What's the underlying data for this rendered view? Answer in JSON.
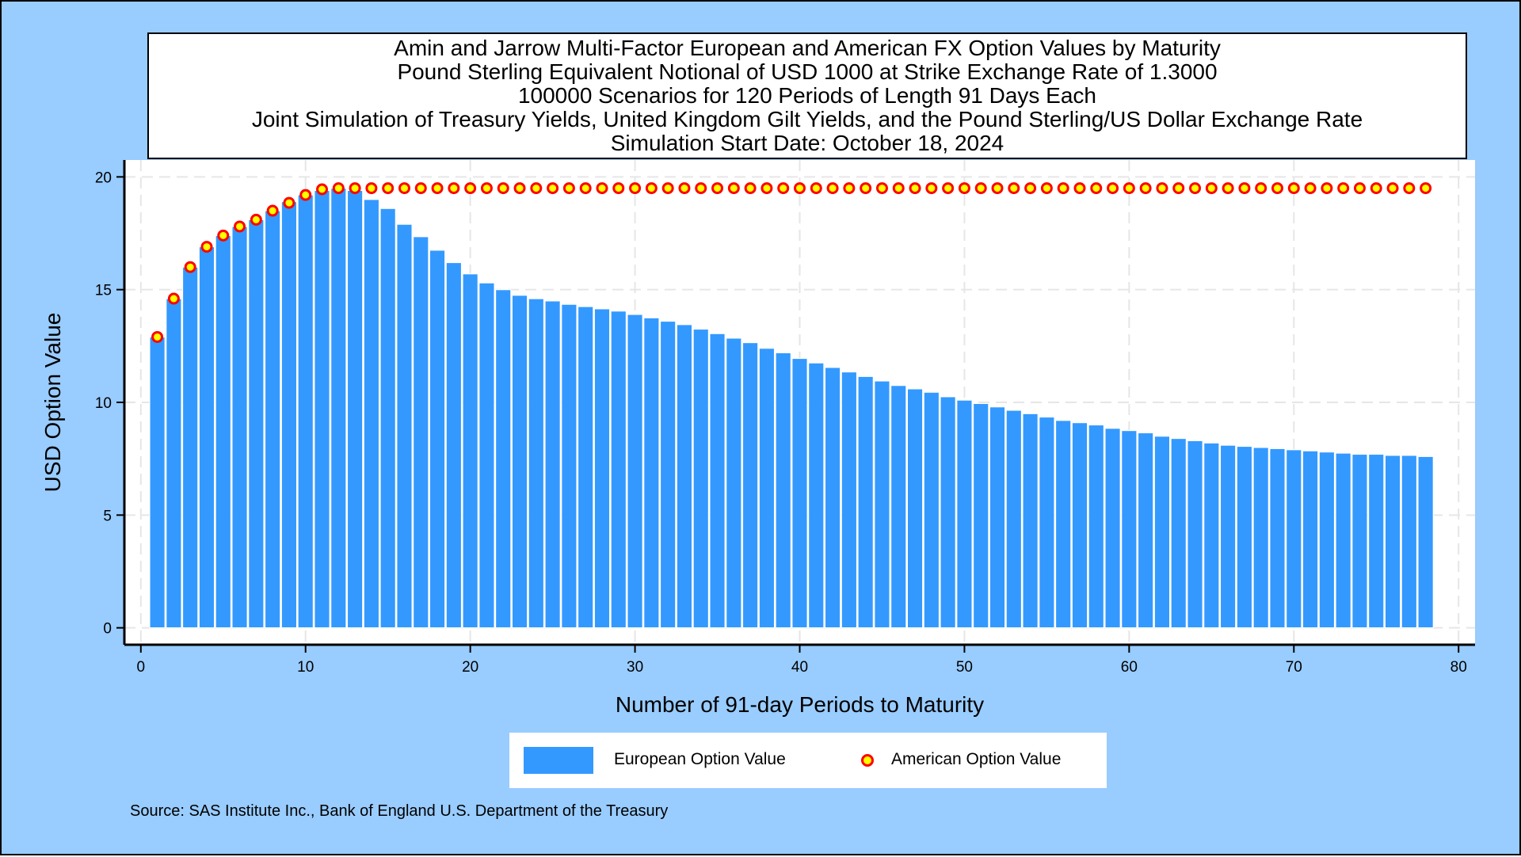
{
  "colors": {
    "background": "#99ccff",
    "bar_fill": "#3399ff",
    "bar_outline": "#ffffff",
    "marker_fill": "#ffff00",
    "marker_outline": "#ff0000",
    "grid": "#e6e6e6"
  },
  "title_lines": [
    "Amin and Jarrow Multi-Factor European and American FX Option Values by Maturity",
    "Pound Sterling Equivalent Notional of USD 1000 at Strike Exchange Rate of  1.3000",
    "100000 Scenarios for 120 Periods of Length 91 Days Each",
    "Joint Simulation of Treasury Yields, United Kingdom Gilt Yields, and the Pound Sterling/US Dollar Exchange Rate",
    "Simulation Start Date: October 18, 2024"
  ],
  "legend": {
    "european_label": "European Option Value",
    "american_label": "American Option Value"
  },
  "footnote": "Source: SAS Institute Inc., Bank of England U.S. Department of the Treasury",
  "chart_data": {
    "type": "bar",
    "xlabel": "Number of 91-day Periods to Maturity",
    "ylabel": "USD Option Value",
    "xlim": [
      -1,
      81
    ],
    "ylim": [
      -0.75,
      20.75
    ],
    "xticks": [
      0,
      10,
      20,
      30,
      40,
      50,
      60,
      70,
      80
    ],
    "yticks": [
      0,
      5,
      10,
      15,
      20
    ],
    "grid": true,
    "legend_position": "bottom",
    "x": [
      1,
      2,
      3,
      4,
      5,
      6,
      7,
      8,
      9,
      10,
      11,
      12,
      13,
      14,
      15,
      16,
      17,
      18,
      19,
      20,
      21,
      22,
      23,
      24,
      25,
      26,
      27,
      28,
      29,
      30,
      31,
      32,
      33,
      34,
      35,
      36,
      37,
      38,
      39,
      40,
      41,
      42,
      43,
      44,
      45,
      46,
      47,
      48,
      49,
      50,
      51,
      52,
      53,
      54,
      55,
      56,
      57,
      58,
      59,
      60,
      61,
      62,
      63,
      64,
      65,
      66,
      67,
      68,
      69,
      70,
      71,
      72,
      73,
      74,
      75,
      76,
      77,
      78
    ],
    "series": [
      {
        "name": "European Option Value",
        "type": "bar",
        "values": [
          12.9,
          14.6,
          16.0,
          16.9,
          17.4,
          17.8,
          18.1,
          18.5,
          18.9,
          19.2,
          19.4,
          19.5,
          19.4,
          19.0,
          18.6,
          17.9,
          17.35,
          16.75,
          16.2,
          15.7,
          15.3,
          15.0,
          14.75,
          14.6,
          14.5,
          14.35,
          14.25,
          14.15,
          14.05,
          13.9,
          13.75,
          13.6,
          13.45,
          13.25,
          13.05,
          12.85,
          12.65,
          12.4,
          12.2,
          11.95,
          11.75,
          11.55,
          11.35,
          11.15,
          10.95,
          10.75,
          10.6,
          10.45,
          10.25,
          10.1,
          9.95,
          9.8,
          9.65,
          9.5,
          9.35,
          9.2,
          9.1,
          9.0,
          8.85,
          8.75,
          8.65,
          8.5,
          8.4,
          8.3,
          8.2,
          8.1,
          8.05,
          8.0,
          7.95,
          7.9,
          7.85,
          7.8,
          7.75,
          7.7,
          7.7,
          7.65,
          7.65,
          7.6
        ]
      },
      {
        "name": "American Option Value",
        "type": "scatter",
        "values": [
          12.9,
          14.6,
          16.0,
          16.9,
          17.4,
          17.8,
          18.1,
          18.5,
          18.85,
          19.2,
          19.45,
          19.5,
          19.5,
          19.5,
          19.5,
          19.5,
          19.5,
          19.5,
          19.5,
          19.5,
          19.5,
          19.5,
          19.5,
          19.5,
          19.5,
          19.5,
          19.5,
          19.5,
          19.5,
          19.5,
          19.5,
          19.5,
          19.5,
          19.5,
          19.5,
          19.5,
          19.5,
          19.5,
          19.5,
          19.5,
          19.5,
          19.5,
          19.5,
          19.5,
          19.5,
          19.5,
          19.5,
          19.5,
          19.5,
          19.5,
          19.5,
          19.5,
          19.5,
          19.5,
          19.5,
          19.5,
          19.5,
          19.5,
          19.5,
          19.5,
          19.5,
          19.5,
          19.5,
          19.5,
          19.5,
          19.5,
          19.5,
          19.5,
          19.5,
          19.5,
          19.5,
          19.5,
          19.5,
          19.5,
          19.5,
          19.5,
          19.5,
          19.5
        ]
      }
    ]
  }
}
